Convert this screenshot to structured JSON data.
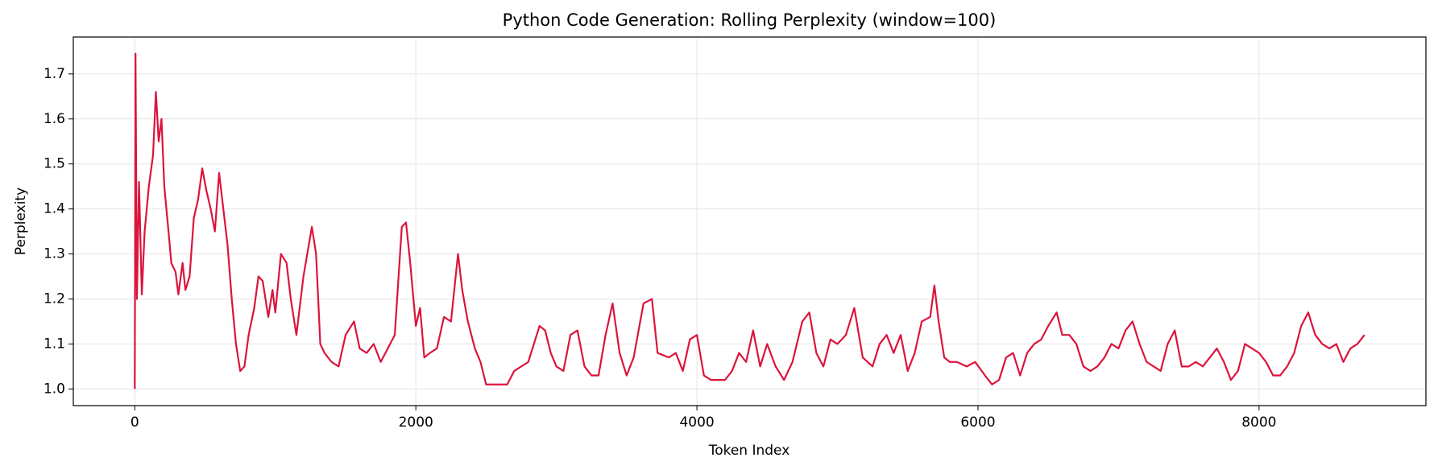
{
  "chart_data": {
    "type": "line",
    "title": "Python Code Generation: Rolling Perplexity (window=100)",
    "x_label": "Token Index",
    "y_label": "Perplexity",
    "x": [
      0,
      5,
      15,
      30,
      50,
      70,
      100,
      130,
      150,
      170,
      190,
      210,
      240,
      260,
      290,
      310,
      340,
      360,
      390,
      420,
      450,
      480,
      510,
      540,
      570,
      600,
      630,
      660,
      690,
      720,
      750,
      780,
      810,
      850,
      880,
      910,
      950,
      980,
      1000,
      1040,
      1080,
      1110,
      1150,
      1200,
      1260,
      1290,
      1320,
      1350,
      1400,
      1450,
      1500,
      1560,
      1600,
      1650,
      1700,
      1750,
      1800,
      1850,
      1900,
      1930,
      1960,
      2000,
      2030,
      2060,
      2100,
      2150,
      2200,
      2250,
      2300,
      2330,
      2370,
      2420,
      2460,
      2500,
      2550,
      2650,
      2700,
      2800,
      2880,
      2920,
      2960,
      3000,
      3050,
      3100,
      3150,
      3200,
      3250,
      3300,
      3350,
      3400,
      3450,
      3500,
      3550,
      3620,
      3680,
      3720,
      3800,
      3850,
      3900,
      3950,
      4000,
      4050,
      4100,
      4200,
      4250,
      4300,
      4350,
      4400,
      4450,
      4500,
      4560,
      4620,
      4680,
      4750,
      4800,
      4850,
      4900,
      4950,
      5000,
      5060,
      5120,
      5180,
      5250,
      5300,
      5350,
      5400,
      5450,
      5500,
      5550,
      5600,
      5660,
      5690,
      5720,
      5760,
      5800,
      5850,
      5920,
      5980,
      6050,
      6100,
      6150,
      6200,
      6250,
      6300,
      6350,
      6400,
      6450,
      6500,
      6560,
      6600,
      6650,
      6700,
      6750,
      6800,
      6850,
      6900,
      6950,
      7000,
      7050,
      7100,
      7150,
      7200,
      7250,
      7300,
      7350,
      7400,
      7450,
      7500,
      7550,
      7600,
      7650,
      7700,
      7750,
      7800,
      7850,
      7900,
      7950,
      8000,
      8050,
      8100,
      8150,
      8200,
      8250,
      8300,
      8350,
      8400,
      8450,
      8500,
      8550,
      8600,
      8650,
      8700,
      8750
    ],
    "series": [
      {
        "name": "Perplexity",
        "color": "#dc143c",
        "values": [
          1.0,
          1.745,
          1.2,
          1.46,
          1.21,
          1.35,
          1.45,
          1.52,
          1.66,
          1.55,
          1.6,
          1.45,
          1.35,
          1.28,
          1.26,
          1.21,
          1.28,
          1.22,
          1.25,
          1.38,
          1.42,
          1.49,
          1.44,
          1.4,
          1.35,
          1.48,
          1.4,
          1.32,
          1.2,
          1.1,
          1.04,
          1.05,
          1.12,
          1.18,
          1.25,
          1.24,
          1.16,
          1.22,
          1.17,
          1.3,
          1.28,
          1.2,
          1.12,
          1.25,
          1.36,
          1.3,
          1.1,
          1.08,
          1.06,
          1.05,
          1.12,
          1.15,
          1.09,
          1.08,
          1.1,
          1.06,
          1.09,
          1.12,
          1.36,
          1.37,
          1.28,
          1.14,
          1.18,
          1.07,
          1.08,
          1.09,
          1.16,
          1.15,
          1.3,
          1.22,
          1.15,
          1.09,
          1.06,
          1.01,
          1.01,
          1.01,
          1.04,
          1.06,
          1.14,
          1.13,
          1.08,
          1.05,
          1.04,
          1.12,
          1.13,
          1.05,
          1.03,
          1.03,
          1.12,
          1.19,
          1.08,
          1.03,
          1.07,
          1.19,
          1.2,
          1.08,
          1.07,
          1.08,
          1.04,
          1.11,
          1.12,
          1.03,
          1.02,
          1.02,
          1.04,
          1.08,
          1.06,
          1.13,
          1.05,
          1.1,
          1.05,
          1.02,
          1.06,
          1.15,
          1.17,
          1.08,
          1.05,
          1.11,
          1.1,
          1.12,
          1.18,
          1.07,
          1.05,
          1.1,
          1.12,
          1.08,
          1.12,
          1.04,
          1.08,
          1.15,
          1.16,
          1.23,
          1.15,
          1.07,
          1.06,
          1.06,
          1.05,
          1.06,
          1.03,
          1.01,
          1.02,
          1.07,
          1.08,
          1.03,
          1.08,
          1.1,
          1.11,
          1.14,
          1.17,
          1.12,
          1.12,
          1.1,
          1.05,
          1.04,
          1.05,
          1.07,
          1.1,
          1.09,
          1.13,
          1.15,
          1.1,
          1.06,
          1.05,
          1.04,
          1.1,
          1.13,
          1.05,
          1.05,
          1.06,
          1.05,
          1.07,
          1.09,
          1.06,
          1.02,
          1.04,
          1.1,
          1.09,
          1.08,
          1.06,
          1.03,
          1.03,
          1.05,
          1.08,
          1.14,
          1.17,
          1.12,
          1.1,
          1.09,
          1.1,
          1.06,
          1.09,
          1.1,
          1.12
        ]
      }
    ],
    "xlim": [
      -437.5,
      9187.5
    ],
    "xticks": [
      0,
      2000,
      4000,
      6000,
      8000
    ],
    "ylim": [
      0.963,
      1.782
    ],
    "yticks": [
      {
        "value": 1.0,
        "label": "1.0"
      },
      1.1,
      1.2,
      1.3,
      1.4,
      1.5,
      1.6,
      1.7
    ],
    "grid": true
  }
}
